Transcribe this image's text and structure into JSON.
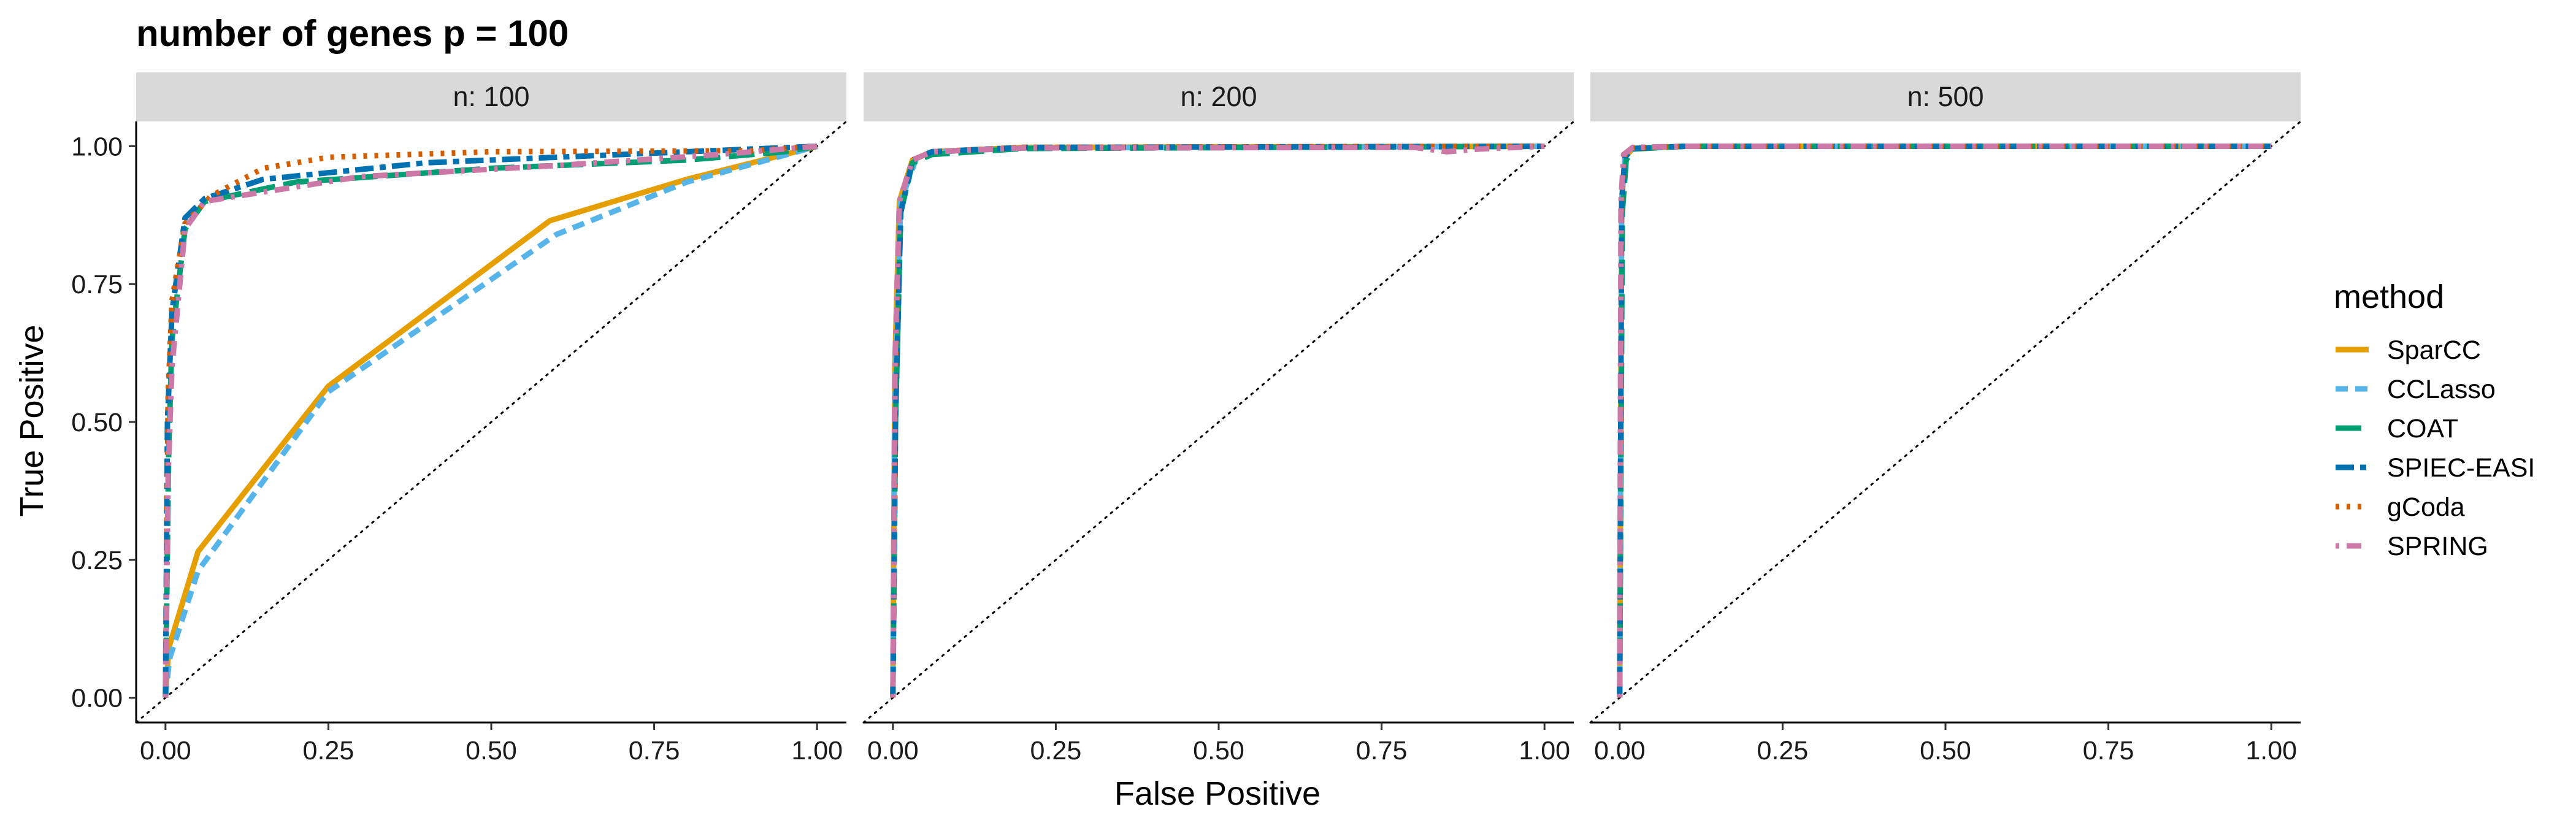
{
  "chart_data": {
    "type": "line",
    "title": "number of genes p = 100",
    "xlabel": "False Positive",
    "ylabel": "True Positive",
    "xlim": [
      0,
      1
    ],
    "ylim": [
      0,
      1
    ],
    "x_ticks": [
      "0.00",
      "0.25",
      "0.50",
      "0.75",
      "1.00"
    ],
    "y_ticks": [
      "0.00",
      "0.25",
      "0.50",
      "0.75",
      "1.00"
    ],
    "grid": false,
    "reference_line": "diagonal dotted",
    "legend": {
      "title": "method",
      "position": "right",
      "entries": [
        {
          "name": "SparCC",
          "color": "#E69F00",
          "dash": "solid"
        },
        {
          "name": "CCLasso",
          "color": "#56B4E9",
          "dash": "dashed"
        },
        {
          "name": "COAT",
          "color": "#009E73",
          "dash": "longdash"
        },
        {
          "name": "SPIEC-EASI",
          "color": "#0072B2",
          "dash": "twodash"
        },
        {
          "name": "gCoda",
          "color": "#D55E00",
          "dash": "dotted"
        },
        {
          "name": "SPRING",
          "color": "#CC79A7",
          "dash": "dotdash"
        }
      ]
    },
    "panels": [
      {
        "label": "n: 100",
        "series": [
          {
            "name": "SparCC",
            "points": [
              [
                0,
                0
              ],
              [
                0.005,
                0.09
              ],
              [
                0.05,
                0.265
              ],
              [
                0.25,
                0.565
              ],
              [
                0.59,
                0.865
              ],
              [
                0.8,
                0.94
              ],
              [
                1,
                1
              ]
            ]
          },
          {
            "name": "CCLasso",
            "points": [
              [
                0,
                0
              ],
              [
                0.006,
                0.07
              ],
              [
                0.05,
                0.23
              ],
              [
                0.25,
                0.555
              ],
              [
                0.6,
                0.84
              ],
              [
                0.8,
                0.935
              ],
              [
                1,
                1
              ]
            ]
          },
          {
            "name": "COAT",
            "points": [
              [
                0,
                0
              ],
              [
                0.005,
                0.45
              ],
              [
                0.01,
                0.65
              ],
              [
                0.03,
                0.85
              ],
              [
                0.06,
                0.9
              ],
              [
                0.2,
                0.935
              ],
              [
                0.5,
                0.96
              ],
              [
                0.8,
                0.975
              ],
              [
                0.95,
                0.99
              ],
              [
                1,
                1
              ]
            ]
          },
          {
            "name": "SPIEC-EASI",
            "points": [
              [
                0,
                0
              ],
              [
                0.003,
                0.5
              ],
              [
                0.01,
                0.7
              ],
              [
                0.03,
                0.87
              ],
              [
                0.06,
                0.905
              ],
              [
                0.15,
                0.94
              ],
              [
                0.4,
                0.97
              ],
              [
                0.8,
                0.99
              ],
              [
                1,
                1
              ]
            ]
          },
          {
            "name": "gCoda",
            "points": [
              [
                0,
                0
              ],
              [
                0.004,
                0.55
              ],
              [
                0.01,
                0.72
              ],
              [
                0.03,
                0.86
              ],
              [
                0.07,
                0.91
              ],
              [
                0.15,
                0.96
              ],
              [
                0.25,
                0.98
              ],
              [
                0.5,
                0.99
              ],
              [
                0.9,
                0.992
              ],
              [
                1,
                1
              ]
            ]
          },
          {
            "name": "SPRING",
            "points": [
              [
                0,
                0
              ],
              [
                0.004,
                0.4
              ],
              [
                0.01,
                0.6
              ],
              [
                0.03,
                0.85
              ],
              [
                0.06,
                0.9
              ],
              [
                0.3,
                0.945
              ],
              [
                0.6,
                0.965
              ],
              [
                0.85,
                0.985
              ],
              [
                1,
                1
              ]
            ]
          }
        ]
      },
      {
        "label": "n: 200",
        "series": [
          {
            "name": "SparCC",
            "points": [
              [
                0,
                0
              ],
              [
                0.003,
                0.6
              ],
              [
                0.01,
                0.9
              ],
              [
                0.03,
                0.975
              ],
              [
                0.06,
                0.99
              ],
              [
                0.2,
                0.998
              ],
              [
                1,
                1
              ]
            ]
          },
          {
            "name": "CCLasso",
            "points": [
              [
                0,
                0
              ],
              [
                0.003,
                0.55
              ],
              [
                0.012,
                0.9
              ],
              [
                0.035,
                0.975
              ],
              [
                0.07,
                0.99
              ],
              [
                0.2,
                0.997
              ],
              [
                1,
                1
              ]
            ]
          },
          {
            "name": "COAT",
            "points": [
              [
                0,
                0
              ],
              [
                0.004,
                0.5
              ],
              [
                0.012,
                0.88
              ],
              [
                0.03,
                0.97
              ],
              [
                0.06,
                0.985
              ],
              [
                0.2,
                0.996
              ],
              [
                1,
                1
              ]
            ]
          },
          {
            "name": "SPIEC-EASI",
            "points": [
              [
                0,
                0
              ],
              [
                0.004,
                0.5
              ],
              [
                0.012,
                0.88
              ],
              [
                0.03,
                0.975
              ],
              [
                0.06,
                0.99
              ],
              [
                0.2,
                0.998
              ],
              [
                1,
                1
              ]
            ]
          },
          {
            "name": "gCoda",
            "points": [
              [
                0,
                0
              ],
              [
                0.004,
                0.6
              ],
              [
                0.01,
                0.9
              ],
              [
                0.03,
                0.975
              ],
              [
                0.06,
                0.99
              ],
              [
                0.2,
                0.998
              ],
              [
                1,
                1
              ]
            ]
          },
          {
            "name": "SPRING",
            "points": [
              [
                0,
                0
              ],
              [
                0.003,
                0.6
              ],
              [
                0.01,
                0.9
              ],
              [
                0.03,
                0.975
              ],
              [
                0.06,
                0.99
              ],
              [
                0.2,
                0.997
              ],
              [
                0.8,
                0.998
              ],
              [
                0.85,
                0.99
              ],
              [
                0.9,
                0.995
              ],
              [
                1,
                1
              ]
            ]
          }
        ]
      },
      {
        "label": "n: 500",
        "series": [
          {
            "name": "SparCC",
            "points": [
              [
                0,
                0
              ],
              [
                0.003,
                0.9
              ],
              [
                0.008,
                0.98
              ],
              [
                0.02,
                0.996
              ],
              [
                0.1,
                1
              ],
              [
                1,
                1
              ]
            ]
          },
          {
            "name": "CCLasso",
            "points": [
              [
                0,
                0
              ],
              [
                0.003,
                0.9
              ],
              [
                0.008,
                0.98
              ],
              [
                0.02,
                0.996
              ],
              [
                0.1,
                1
              ],
              [
                1,
                1
              ]
            ]
          },
          {
            "name": "COAT",
            "points": [
              [
                0,
                0
              ],
              [
                0.004,
                0.88
              ],
              [
                0.01,
                0.975
              ],
              [
                0.02,
                0.995
              ],
              [
                0.1,
                1
              ],
              [
                1,
                1
              ]
            ]
          },
          {
            "name": "SPIEC-EASI",
            "points": [
              [
                0,
                0
              ],
              [
                0.003,
                0.9
              ],
              [
                0.008,
                0.98
              ],
              [
                0.02,
                0.996
              ],
              [
                0.1,
                1
              ],
              [
                1,
                1
              ]
            ]
          },
          {
            "name": "gCoda",
            "points": [
              [
                0,
                0
              ],
              [
                0.003,
                0.92
              ],
              [
                0.008,
                0.985
              ],
              [
                0.02,
                0.997
              ],
              [
                0.1,
                1
              ],
              [
                1,
                1
              ]
            ]
          },
          {
            "name": "SPRING",
            "points": [
              [
                0,
                0
              ],
              [
                0.002,
                0.9
              ],
              [
                0.006,
                0.985
              ],
              [
                0.02,
                0.998
              ],
              [
                0.1,
                1
              ],
              [
                1,
                1
              ]
            ]
          }
        ]
      }
    ]
  }
}
